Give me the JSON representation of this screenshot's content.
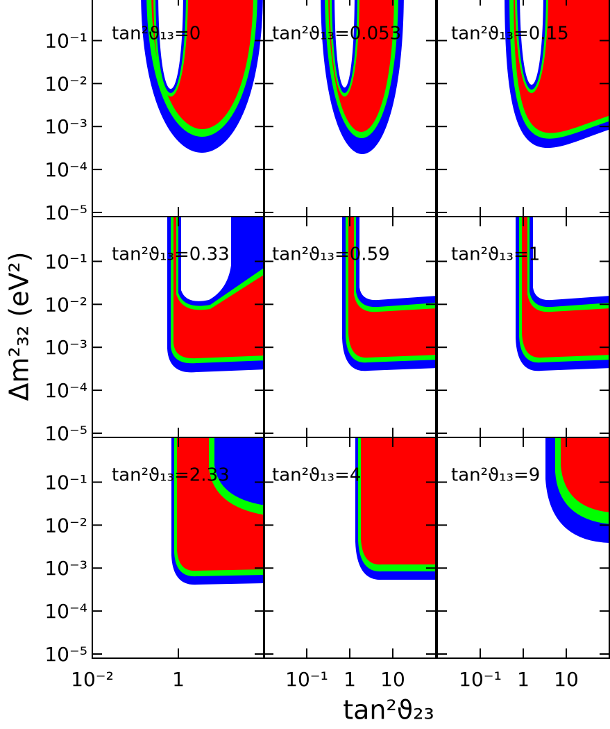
{
  "chart_data": {
    "type": "contour",
    "xlabel": "tan²ϑ₂₃",
    "ylabel": "Δm²₃₂ (eV²)",
    "xscale": "log",
    "yscale": "log",
    "xlim": [
      0.01,
      100
    ],
    "ylim": [
      8e-06,
      1.1
    ],
    "yticks": [
      {
        "value": 0.1,
        "label": "10⁻¹"
      },
      {
        "value": 0.01,
        "label": "10⁻²"
      },
      {
        "value": 0.001,
        "label": "10⁻³"
      },
      {
        "value": 0.0001,
        "label": "10⁻⁴"
      },
      {
        "value": 1e-05,
        "label": "10⁻⁵"
      }
    ],
    "xticks": [
      [
        {
          "value": 0.01,
          "label": "10⁻²"
        },
        1
      ],
      [
        {
          "value": 0.1,
          "label": "10⁻¹"
        },
        1,
        10
      ],
      [
        {
          "value": 0.1,
          "label": "10⁻¹"
        },
        1,
        10
      ]
    ],
    "colors": [
      "#0000ff",
      "#00ff00",
      "#ff0000"
    ],
    "panels": [
      {
        "label": "tan²ϑ₁₃=0"
      },
      {
        "label": "tan²ϑ₁₃=0.053"
      },
      {
        "label": "tan²ϑ₁₃=0.15"
      },
      {
        "label": "tan²ϑ₁₃=0.33"
      },
      {
        "label": "tan²ϑ₁₃=0.59"
      },
      {
        "label": "tan²ϑ₁₃=1"
      },
      {
        "label": "tan²ϑ₁₃=2.33"
      },
      {
        "label": "tan²ϑ₁₃=4"
      },
      {
        "label": "tan²ϑ₁₃=9"
      }
    ]
  }
}
